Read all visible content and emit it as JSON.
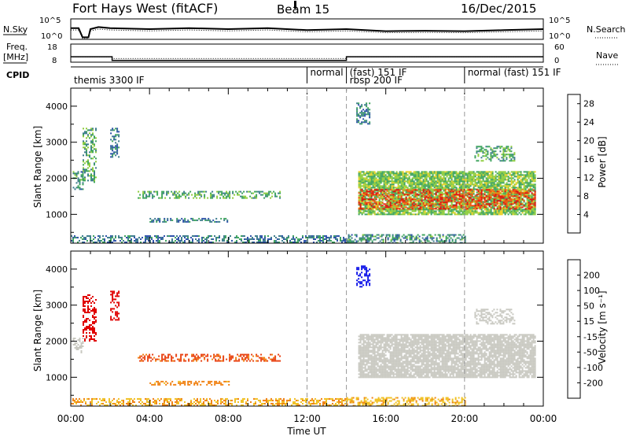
{
  "header": {
    "title": "Fort Hays West (fitACF)",
    "beam": "Beam 15",
    "date": "16/Dec/2015"
  },
  "colors": {
    "power_scale": [
      "#0a10e8",
      "#2a4ea8",
      "#3a7a8a",
      "#3aa25a",
      "#8ccc3a",
      "#e8d020",
      "#f09010",
      "#f05010",
      "#e01010"
    ],
    "velocity_scale": [
      "#0a10e8",
      "#3a6ab0",
      "#2a9a4a",
      "#6ad040",
      "#c8c8c0",
      "#f0c020",
      "#f08010",
      "#e84010",
      "#e00000"
    ],
    "velocity_ground": "#c0c0b8"
  },
  "chart_data": [
    {
      "type": "line",
      "name_label": "N.Sky",
      "right_label": "N.Search",
      "yticks_left": [
        "10^5",
        "10^0"
      ],
      "yticks_right": [
        "10^5",
        "10^0"
      ],
      "x": [
        0,
        0.4,
        0.6,
        0.9,
        1.0,
        1.4,
        2,
        4,
        6,
        8,
        10,
        12,
        14,
        16,
        18,
        20,
        22,
        24
      ],
      "values": [
        0.55,
        0.55,
        0.1,
        0.1,
        0.5,
        0.6,
        0.55,
        0.5,
        0.55,
        0.5,
        0.55,
        0.45,
        0.5,
        0.4,
        0.42,
        0.4,
        0.45,
        0.5
      ],
      "ylim": [
        0,
        1
      ]
    },
    {
      "type": "line",
      "ylabel": "Freq.",
      "yunit": "[MHz]",
      "right_label": "Nave",
      "yticks_left": [
        "18",
        "8"
      ],
      "yticks_right": [
        "60",
        "0"
      ],
      "freq_segments": [
        {
          "x0": 0,
          "x1": 2.1,
          "value": 11.0
        },
        {
          "x0": 2.1,
          "x1": 14.0,
          "value": 9.0
        },
        {
          "x0": 14.0,
          "x1": 24.0,
          "value": 11.0
        }
      ],
      "nave_segments": [
        {
          "x0": 0,
          "x1": 2.1,
          "value": 18
        },
        {
          "x0": 2.1,
          "x1": 14.0,
          "value": 12
        },
        {
          "x0": 14.0,
          "x1": 24.0,
          "value": 18
        }
      ],
      "ylim": [
        8,
        18
      ]
    },
    {
      "type": "table",
      "label": "CPID",
      "programs": [
        {
          "x0": 0,
          "x1": 12,
          "text": "themis 3300 IF",
          "row": 1
        },
        {
          "x0": 12,
          "x1": 14,
          "text": "normal",
          "row": 0
        },
        {
          "x0": 14,
          "x1": 20,
          "text": "(fast) 151 IF",
          "row": 0
        },
        {
          "x0": 14,
          "x1": 20,
          "text": "rbsp 200 IF",
          "row": 1
        },
        {
          "x0": 20,
          "x1": 24,
          "text": "normal (fast) 151 IF",
          "row": 0
        }
      ]
    },
    {
      "type": "heatmap",
      "ylabel": "Slant Range [km]",
      "yticks": [
        1000,
        2000,
        3000,
        4000
      ],
      "ylim": [
        200,
        4500
      ],
      "xlim": [
        0,
        24
      ],
      "colorbar_label": "Power [dB]",
      "colorbar_ticks": [
        4,
        8,
        12,
        16,
        20,
        24,
        28
      ],
      "colorbar_range": [
        0,
        30
      ],
      "echo_regions": [
        {
          "x0": 0.1,
          "x1": 0.6,
          "y0": 1700,
          "y1": 2200,
          "value": 10
        },
        {
          "x0": 0.6,
          "x1": 1.3,
          "y0": 1900,
          "y1": 3400,
          "value": 12
        },
        {
          "x0": 2.0,
          "x1": 2.4,
          "y0": 2600,
          "y1": 3400,
          "value": 8
        },
        {
          "x0": 3.4,
          "x1": 10.6,
          "y0": 1450,
          "y1": 1650,
          "value": 12
        },
        {
          "x0": 4.0,
          "x1": 8.0,
          "y0": 800,
          "y1": 900,
          "value": 9
        },
        {
          "x0": 0,
          "x1": 14,
          "y0": 220,
          "y1": 420,
          "value": 8
        },
        {
          "x0": 14,
          "x1": 20,
          "y0": 220,
          "y1": 450,
          "value": 10
        },
        {
          "x0": 14.6,
          "x1": 23.6,
          "y0": 1000,
          "y1": 2200,
          "value": 14
        },
        {
          "x0": 14.6,
          "x1": 23.6,
          "y0": 1150,
          "y1": 1700,
          "value": 26
        },
        {
          "x0": 14.5,
          "x1": 15.2,
          "y0": 3500,
          "y1": 4100,
          "value": 8
        },
        {
          "x0": 20.5,
          "x1": 22.5,
          "y0": 2500,
          "y1": 2900,
          "value": 12
        }
      ]
    },
    {
      "type": "heatmap",
      "ylabel": "Slant Range [km]",
      "yticks": [
        1000,
        2000,
        3000,
        4000
      ],
      "ylim": [
        200,
        4500
      ],
      "xlim": [
        0,
        24
      ],
      "xticks": [
        "00:00",
        "04:00",
        "08:00",
        "12:00",
        "16:00",
        "20:00",
        "00:00"
      ],
      "xlabel": "Time UT",
      "colorbar_label": "Velocity [m s⁻¹]",
      "colorbar_ticks": [
        -200,
        -100,
        -50,
        -15,
        15,
        50,
        100,
        200
      ],
      "colorbar_range": [
        -250,
        250
      ],
      "echo_regions": [
        {
          "x0": 0.1,
          "x1": 0.6,
          "y0": 1700,
          "y1": 2100,
          "value": 0
        },
        {
          "x0": 0.6,
          "x1": 1.3,
          "y0": 2000,
          "y1": 3300,
          "value": -220
        },
        {
          "x0": 2.0,
          "x1": 2.4,
          "y0": 2600,
          "y1": 3400,
          "value": -200
        },
        {
          "x0": 3.4,
          "x1": 10.6,
          "y0": 1450,
          "y1": 1650,
          "value": -80
        },
        {
          "x0": 4.0,
          "x1": 8.0,
          "y0": 800,
          "y1": 900,
          "value": -40
        },
        {
          "x0": 0,
          "x1": 14,
          "y0": 220,
          "y1": 420,
          "value": -30
        },
        {
          "x0": 14,
          "x1": 20,
          "y0": 220,
          "y1": 450,
          "value": -25
        },
        {
          "x0": 14.6,
          "x1": 23.6,
          "y0": 1000,
          "y1": 2200,
          "value": 0
        },
        {
          "x0": 14.5,
          "x1": 15.2,
          "y0": 3500,
          "y1": 4100,
          "value": 180
        },
        {
          "x0": 20.5,
          "x1": 22.5,
          "y0": 2500,
          "y1": 2900,
          "value": 0
        }
      ]
    }
  ]
}
